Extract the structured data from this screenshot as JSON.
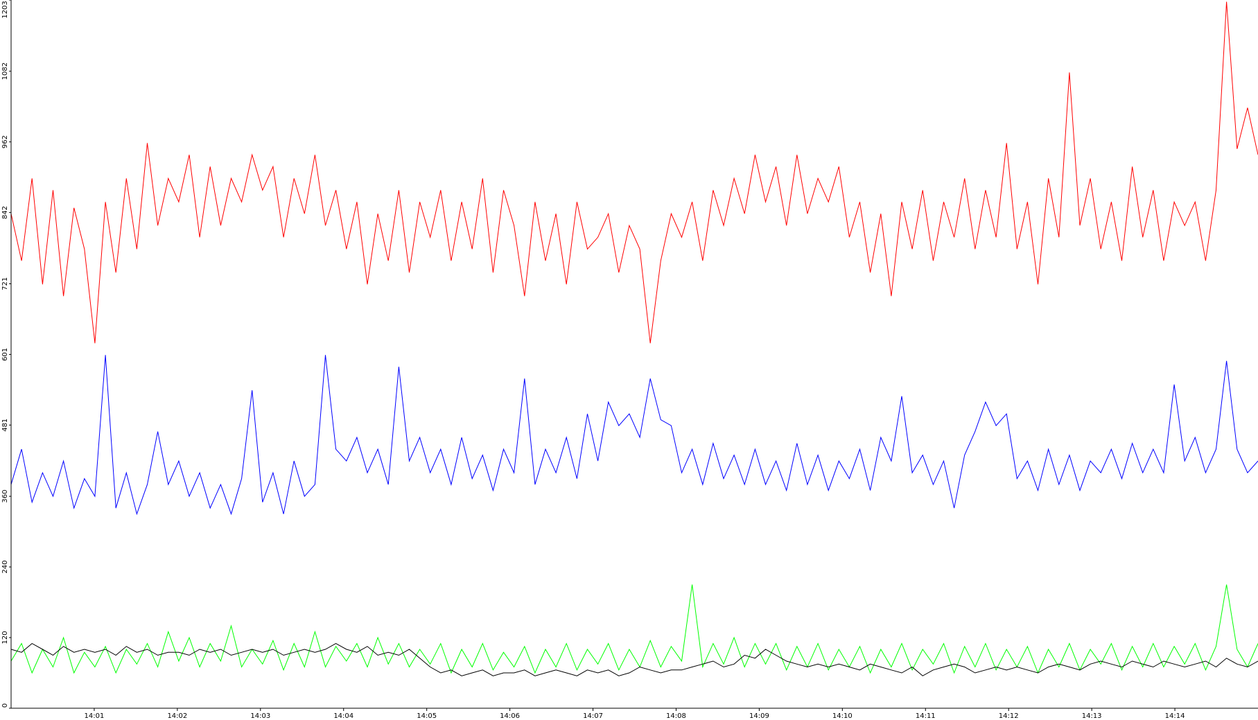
{
  "chart_data": {
    "type": "line",
    "ylim": [
      0,
      1203
    ],
    "yticks": [
      0,
      120,
      240,
      360,
      481,
      601,
      721,
      842,
      962,
      1082,
      1203
    ],
    "xlim": [
      "14:00",
      "14:15"
    ],
    "xticks": [
      "14:01",
      "14:02",
      "14:03",
      "14:04",
      "14:05",
      "14:06",
      "14:07",
      "14:08",
      "14:09",
      "14:10",
      "14:11",
      "14:12",
      "14:13",
      "14:14"
    ],
    "grid": false,
    "series": [
      {
        "color": "#ff0000",
        "values": [
          840,
          760,
          900,
          720,
          880,
          700,
          850,
          780,
          620,
          860,
          740,
          900,
          780,
          960,
          820,
          900,
          860,
          940,
          800,
          920,
          820,
          900,
          860,
          940,
          880,
          920,
          800,
          900,
          840,
          940,
          820,
          880,
          780,
          860,
          720,
          840,
          760,
          880,
          740,
          860,
          800,
          880,
          760,
          860,
          780,
          900,
          740,
          880,
          820,
          700,
          860,
          760,
          840,
          720,
          860,
          780,
          800,
          840,
          740,
          820,
          780,
          620,
          760,
          840,
          800,
          860,
          760,
          880,
          820,
          900,
          840,
          940,
          860,
          920,
          820,
          940,
          840,
          900,
          860,
          920,
          800,
          860,
          740,
          840,
          700,
          860,
          780,
          880,
          760,
          860,
          800,
          900,
          780,
          880,
          800,
          960,
          780,
          860,
          720,
          900,
          800,
          1080,
          820,
          900,
          780,
          860,
          760,
          920,
          800,
          880,
          760,
          860,
          820,
          860,
          760,
          880,
          1200,
          950,
          1020,
          940
        ]
      },
      {
        "color": "#0000ff",
        "values": [
          380,
          440,
          350,
          400,
          360,
          420,
          340,
          390,
          360,
          600,
          340,
          400,
          330,
          380,
          470,
          380,
          420,
          360,
          400,
          340,
          380,
          330,
          390,
          540,
          350,
          400,
          330,
          420,
          360,
          380,
          600,
          440,
          420,
          460,
          400,
          440,
          380,
          580,
          420,
          460,
          400,
          440,
          380,
          460,
          390,
          430,
          370,
          440,
          400,
          560,
          380,
          440,
          400,
          460,
          390,
          500,
          420,
          520,
          480,
          500,
          460,
          560,
          490,
          480,
          400,
          440,
          380,
          450,
          390,
          430,
          380,
          440,
          380,
          420,
          370,
          450,
          380,
          430,
          370,
          420,
          390,
          440,
          370,
          460,
          420,
          530,
          400,
          430,
          380,
          420,
          340,
          430,
          470,
          520,
          480,
          500,
          390,
          420,
          370,
          440,
          380,
          430,
          370,
          420,
          400,
          440,
          390,
          450,
          400,
          440,
          400,
          550,
          420,
          460,
          400,
          440,
          590,
          440,
          400,
          420
        ]
      },
      {
        "color": "#00ff00",
        "values": [
          80,
          110,
          60,
          100,
          70,
          120,
          60,
          95,
          70,
          105,
          60,
          100,
          75,
          110,
          70,
          130,
          80,
          120,
          70,
          110,
          80,
          140,
          70,
          100,
          75,
          115,
          65,
          110,
          70,
          130,
          70,
          105,
          80,
          110,
          70,
          120,
          75,
          110,
          70,
          100,
          75,
          110,
          60,
          100,
          70,
          110,
          65,
          95,
          70,
          105,
          60,
          100,
          70,
          110,
          65,
          100,
          75,
          110,
          65,
          100,
          70,
          115,
          70,
          105,
          80,
          210,
          70,
          110,
          75,
          120,
          70,
          110,
          75,
          110,
          65,
          105,
          70,
          110,
          65,
          100,
          70,
          105,
          60,
          100,
          70,
          110,
          65,
          100,
          75,
          110,
          60,
          105,
          70,
          110,
          65,
          100,
          70,
          105,
          60,
          100,
          70,
          110,
          65,
          100,
          75,
          110,
          65,
          105,
          70,
          110,
          70,
          105,
          75,
          110,
          65,
          105,
          210,
          100,
          70,
          110
        ]
      },
      {
        "color": "#000000",
        "values": [
          100,
          95,
          110,
          100,
          90,
          105,
          95,
          100,
          95,
          100,
          90,
          105,
          95,
          100,
          90,
          95,
          95,
          90,
          100,
          95,
          100,
          90,
          95,
          100,
          95,
          100,
          90,
          95,
          100,
          95,
          100,
          110,
          100,
          95,
          105,
          90,
          95,
          90,
          100,
          85,
          70,
          60,
          65,
          55,
          60,
          65,
          55,
          60,
          60,
          65,
          55,
          60,
          65,
          60,
          55,
          65,
          60,
          65,
          55,
          60,
          70,
          65,
          60,
          65,
          65,
          70,
          75,
          80,
          70,
          75,
          90,
          85,
          100,
          90,
          80,
          75,
          70,
          75,
          70,
          75,
          70,
          65,
          75,
          70,
          65,
          60,
          70,
          55,
          65,
          70,
          75,
          70,
          60,
          65,
          70,
          65,
          70,
          65,
          60,
          70,
          75,
          70,
          65,
          75,
          80,
          75,
          70,
          80,
          75,
          70,
          80,
          75,
          70,
          75,
          80,
          70,
          85,
          75,
          70,
          80
        ]
      }
    ]
  }
}
